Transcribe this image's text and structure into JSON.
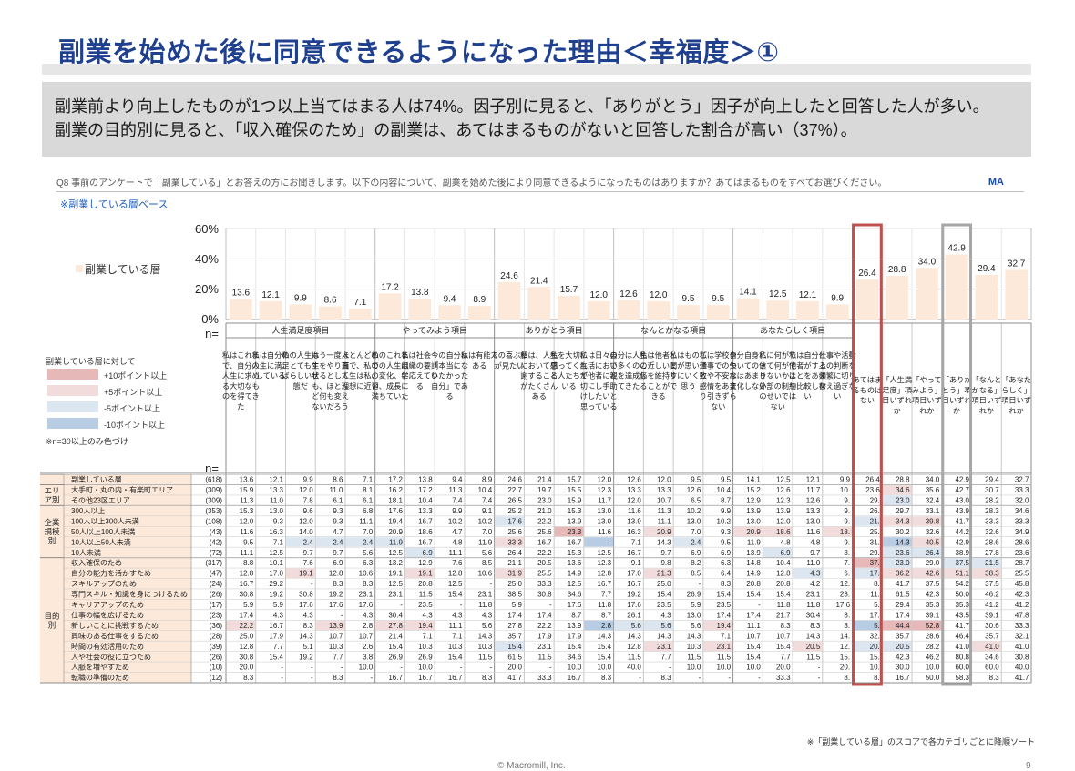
{
  "title": "副業を始めた後に同意できるようになった理由＜幸福度＞①",
  "summary": [
    "副業前より向上したものが1つ以上当てはまる人は74%。因子別に見ると、「ありがとう」因子が向上したと回答した人が多い。",
    "副業の目的別に見ると、「収入確保のため」の副業は、あてはまるものがないと回答した割合が高い（37%）。"
  ],
  "question": "Q8 事前のアンケートで「副業している」とお答えの方にお聞きします。以下の内容について、副業を始めた後により同意できるようになったものはありますか？あてはまるものをすべてお選びください。",
  "answer_type": "MA",
  "base_note": "※副業している層ベース",
  "legend_label": "副業している層",
  "color_key": {
    "title": "副業している層に対して",
    "items": [
      {
        "label": "+10ポイント以上",
        "color": "#e6b8b7"
      },
      {
        "label": "+5ポイント以上",
        "color": "#f2dcdb"
      },
      {
        "label": "-5ポイント以上",
        "color": "#dce6f1"
      },
      {
        "label": "-10ポイント以上",
        "color": "#b8cce4"
      }
    ],
    "note": "※n=30以上のみ色づけ"
  },
  "n_label": "n=",
  "footnote": "※「副業している層」のスコアで各カテゴリごとに降順ソート",
  "copyright": "© Macromill, Inc.",
  "page_number": "9",
  "colors": {
    "title": "#1f3f8f",
    "bar": "#fde9d9",
    "highlight_red": "#c0504d",
    "highlight_gray": "#a6a6a6",
    "row_label_bg": "#fde9d9"
  },
  "chart_data": {
    "type": "bar",
    "ylim": [
      0,
      60
    ],
    "yticks": [
      "60%",
      "40%",
      "20%",
      "0%"
    ],
    "series": [
      {
        "name": "副業している層",
        "values": [
          13.6,
          12.1,
          9.9,
          8.6,
          7.1,
          17.2,
          13.8,
          9.4,
          8.9,
          24.6,
          21.4,
          15.7,
          12.0,
          12.6,
          12.0,
          9.5,
          9.5,
          14.1,
          12.5,
          12.1,
          9.9,
          26.4,
          28.8,
          34.0,
          42.9,
          29.4,
          32.7
        ]
      }
    ],
    "groups": [
      {
        "label": "人生満足度項目",
        "from": 0,
        "to": 4
      },
      {
        "label": "やってみよう項目",
        "from": 5,
        "to": 8
      },
      {
        "label": "ありがとう項目",
        "from": 9,
        "to": 12
      },
      {
        "label": "なんとかなる項目",
        "from": 13,
        "to": 16
      },
      {
        "label": "あなたらしく項目",
        "from": 17,
        "to": 20
      }
    ],
    "categories": [
      "私はこれまで、自分の人生に求める大切なものを得てきた",
      "私は自分の人生に満足している",
      "私の人生は、とてもすばらしい状態だ",
      "もう一度人生をやり直せるとしても、ほとんど何も変えないだろう",
      "ほとんどの面で、私の人生は私の理想に近い",
      "私のこれまでの人生は、変化、学習、成長に満ちていた",
      "私は社会・組織の要請に応えている",
      "今の自分は「本当になりたかった自分」である",
      "私は有能である",
      "人の喜ぶ顔が見たい",
      "私は、人生において感謝することがたくさんある",
      "私を大切に思ってくれる人たちがいる",
      "私は日々の生活において他者に親切にし手助けしたいと思っている",
      "自分は人生で多くのことを達成してきた",
      "私は他者との近しい関係を維持することができる",
      "私はものごとが思い通りにいくと思う",
      "私は学校や仕事での失敗や不安な感情をあまり引きずらない",
      "自分自身についての信念はあまり変化しない",
      "私に何ができて何ができないかは外部の制約のせいではない",
      "私は自分と他者がすることをあまり比較しない",
      "仕事や活動上の判断を頻繁に切り替え過ぎない",
      "あてはまるものはない",
      "「人生満足度」項目いずれか",
      "「やってみよう」項目いずれか",
      "「ありがとう」項目いずれか",
      "「なんとかなる」項目いずれか",
      "「あなたらしく」項目いずれか"
    ],
    "highlight_columns": [
      {
        "index": 21,
        "style": "red"
      },
      {
        "index": 24,
        "style": "gray"
      }
    ],
    "table_sections": [
      {
        "label": "",
        "rows": [
          {
            "label": "副業している層",
            "n": "(618)",
            "values": [
              "13.6",
              "12.1",
              "9.9",
              "8.6",
              "7.1",
              "17.2",
              "13.8",
              "9.4",
              "8.9",
              "24.6",
              "21.4",
              "15.7",
              "12.0",
              "12.6",
              "12.0",
              "9.5",
              "9.5",
              "14.1",
              "12.5",
              "12.1",
              "9.9",
              "26.4",
              "28.8",
              "34.0",
              "42.9",
              "29.4",
              "32.7"
            ],
            "colors": {}
          }
        ]
      },
      {
        "label": "エリア別",
        "rows": [
          {
            "label": "大手町・丸の内・有楽町エリア",
            "n": "(309)",
            "values": [
              "15.9",
              "13.3",
              "12.0",
              "11.0",
              "8.1",
              "16.2",
              "17.2",
              "11.3",
              "10.4",
              "22.7",
              "19.7",
              "15.5",
              "12.3",
              "13.3",
              "13.3",
              "12.6",
              "10.4",
              "15.2",
              "12.6",
              "11.7",
              "10.",
              "23.6",
              "34.6",
              "35.6",
              "42.7",
              "30.7",
              "33.3"
            ],
            "colors": {
              "22": "p5"
            }
          },
          {
            "label": "その他23区エリア",
            "n": "(309)",
            "values": [
              "11.3",
              "11.0",
              "7.8",
              "6.1",
              "6.1",
              "18.1",
              "10.4",
              "7.4",
              "7.4",
              "26.5",
              "23.0",
              "15.9",
              "11.7",
              "12.0",
              "10.7",
              "6.5",
              "8.7",
              "12.9",
              "12.3",
              "12.6",
              "9.",
              "29.",
              "23.0",
              "32.4",
              "43.0",
              "28.2",
              "32.0"
            ],
            "colors": {
              "22": "m5"
            }
          }
        ]
      },
      {
        "label": "企業規模別",
        "rows": [
          {
            "label": "300人以上",
            "n": "(353)",
            "values": [
              "15.3",
              "13.0",
              "9.6",
              "9.3",
              "6.8",
              "17.6",
              "13.3",
              "9.9",
              "9.1",
              "25.2",
              "21.0",
              "15.3",
              "13.0",
              "11.6",
              "11.3",
              "10.2",
              "9.9",
              "13.9",
              "13.9",
              "13.3",
              "9.",
              "26.",
              "29.7",
              "33.1",
              "43.9",
              "28.3",
              "34.6"
            ],
            "colors": {}
          },
          {
            "label": "100人以上300人未満",
            "n": "(108)",
            "values": [
              "12.0",
              "9.3",
              "12.0",
              "9.3",
              "11.1",
              "19.4",
              "16.7",
              "10.2",
              "10.2",
              "17.6",
              "22.2",
              "13.9",
              "13.0",
              "13.9",
              "11.1",
              "13.0",
              "10.2",
              "13.0",
              "12.0",
              "13.0",
              "9.",
              "21.",
              "34.3",
              "39.8",
              "41.7",
              "33.3",
              "33.3"
            ],
            "colors": {
              "9": "m5",
              "21": "m5",
              "22": "p5",
              "23": "p5"
            }
          },
          {
            "label": "50人以上100人未満",
            "n": "(43)",
            "values": [
              "11.6",
              "16.3",
              "14.0",
              "4.7",
              "7.0",
              "20.9",
              "18.6",
              "4.7",
              "7.0",
              "25.6",
              "25.6",
              "23.3",
              "11.6",
              "16.3",
              "20.9",
              "7.0",
              "9.3",
              "20.9",
              "18.6",
              "11.6",
              "18.",
              "25.",
              "30.2",
              "32.6",
              "44.2",
              "32.6",
              "34.9"
            ],
            "colors": {
              "11": "p10",
              "14": "p5",
              "17": "p5",
              "18": "p5",
              "20": "p5"
            }
          },
          {
            "label": "10人以上50人未満",
            "n": "(42)",
            "values": [
              "9.5",
              "7.1",
              "2.4",
              "2.4",
              "2.4",
              "11.9",
              "16.7",
              "4.8",
              "11.9",
              "33.3",
              "16.7",
              "16.7",
              "-",
              "7.1",
              "14.3",
              "2.4",
              "9.5",
              "11.9",
              "4.8",
              "4.8",
              "9.",
              "31.",
              "14.3",
              "40.5",
              "42.9",
              "28.6",
              "28.6"
            ],
            "colors": {
              "2": "m5",
              "3": "m5",
              "4": "m5",
              "5": "m5",
              "9": "p5",
              "12": "m10",
              "15": "m5",
              "22": "m10",
              "23": "p5"
            }
          },
          {
            "label": "10人未満",
            "n": "(72)",
            "values": [
              "11.1",
              "12.5",
              "9.7",
              "9.7",
              "5.6",
              "12.5",
              "6.9",
              "11.1",
              "5.6",
              "26.4",
              "22.2",
              "15.3",
              "12.5",
              "16.7",
              "9.7",
              "6.9",
              "6.9",
              "13.9",
              "6.9",
              "9.7",
              "8.",
              "29.",
              "23.6",
              "26.4",
              "38.9",
              "27.8",
              "23.6"
            ],
            "colors": {
              "6": "m5",
              "18": "m5",
              "22": "m5",
              "23": "m5",
              "31": "m5"
            }
          }
        ]
      },
      {
        "label": "目的別",
        "rows": [
          {
            "label": "収入確保のため",
            "n": "(317)",
            "values": [
              "8.8",
              "10.1",
              "7.6",
              "6.9",
              "6.3",
              "13.2",
              "12.9",
              "7.6",
              "8.5",
              "21.1",
              "20.5",
              "13.6",
              "12.3",
              "9.1",
              "9.8",
              "8.2",
              "6.3",
              "14.8",
              "10.4",
              "11.0",
              "7.",
              "37.",
              "23.0",
              "29.0",
              "37.5",
              "21.5",
              "28.7"
            ],
            "colors": {
              "21": "p10",
              "22": "m5",
              "24": "m5",
              "25": "m5"
            }
          },
          {
            "label": "自分の能力を活かすため",
            "n": "(47)",
            "values": [
              "12.8",
              "17.0",
              "19.1",
              "12.8",
              "10.6",
              "19.1",
              "19.1",
              "12.8",
              "10.6",
              "31.9",
              "25.5",
              "14.9",
              "12.8",
              "17.0",
              "21.3",
              "8.5",
              "6.4",
              "14.9",
              "12.8",
              "4.3",
              "6.",
              "17.",
              "36.2",
              "42.6",
              "51.1",
              "38.3",
              "25.5"
            ],
            "colors": {
              "2": "p5",
              "6": "p5",
              "9": "p5",
              "14": "p5",
              "19": "m5",
              "21": "m5",
              "22": "p5",
              "23": "p5",
              "24": "p5",
              "25": "p5"
            }
          },
          {
            "label": "スキルアップのため",
            "n": "(24)",
            "values": [
              "16.7",
              "29.2",
              "-",
              "8.3",
              "8.3",
              "12.5",
              "20.8",
              "12.5",
              "-",
              "25.0",
              "33.3",
              "12.5",
              "16.7",
              "16.7",
              "25.0",
              "-",
              "8.3",
              "20.8",
              "20.8",
              "4.2",
              "12.",
              "8.",
              "41.7",
              "37.5",
              "54.2",
              "37.5",
              "45.8"
            ],
            "colors": {}
          },
          {
            "label": "専門スキル・知識を身につけるため",
            "n": "(26)",
            "values": [
              "30.8",
              "19.2",
              "30.8",
              "19.2",
              "23.1",
              "23.1",
              "11.5",
              "15.4",
              "23.1",
              "38.5",
              "30.8",
              "34.6",
              "7.7",
              "19.2",
              "15.4",
              "26.9",
              "15.4",
              "15.4",
              "15.4",
              "23.1",
              "23.",
              "11.",
              "61.5",
              "42.3",
              "50.0",
              "46.2",
              "42.3"
            ],
            "colors": {}
          },
          {
            "label": "キャリアアップのため",
            "n": "(17)",
            "values": [
              "5.9",
              "5.9",
              "17.6",
              "17.6",
              "17.6",
              "-",
              "23.5",
              "-",
              "11.8",
              "5.9",
              "-",
              "17.6",
              "11.8",
              "17.6",
              "23.5",
              "5.9",
              "23.5",
              "-",
              "11.8",
              "11.8",
              "17.6",
              "5.",
              "29.4",
              "35.3",
              "35.3",
              "41.2",
              "41.2"
            ],
            "colors": {}
          },
          {
            "label": "仕事の幅を広げるため",
            "n": "(23)",
            "values": [
              "17.4",
              "4.3",
              "4.3",
              "-",
              "4.3",
              "30.4",
              "4.3",
              "4.3",
              "4.3",
              "17.4",
              "17.4",
              "8.7",
              "8.7",
              "26.1",
              "4.3",
              "13.0",
              "17.4",
              "17.4",
              "21.7",
              "30.4",
              "8.",
              "17.",
              "17.4",
              "39.1",
              "43.5",
              "39.1",
              "47.8"
            ],
            "colors": {}
          },
          {
            "label": "新しいことに挑戦するため",
            "n": "(36)",
            "values": [
              "22.2",
              "16.7",
              "8.3",
              "13.9",
              "2.8",
              "27.8",
              "19.4",
              "11.1",
              "5.6",
              "27.8",
              "22.2",
              "13.9",
              "2.8",
              "5.6",
              "5.6",
              "5.6",
              "19.4",
              "11.1",
              "8.3",
              "8.3",
              "8.",
              "5.",
              "44.4",
              "52.8",
              "41.7",
              "30.6",
              "33.3"
            ],
            "colors": {
              "0": "p5",
              "3": "p5",
              "5": "p5",
              "6": "p5",
              "12": "m10",
              "13": "m5",
              "14": "m5",
              "16": "p5",
              "21": "m10",
              "22": "p10",
              "23": "p10"
            }
          },
          {
            "label": "興味のある仕事をするため",
            "n": "(28)",
            "values": [
              "25.0",
              "17.9",
              "14.3",
              "10.7",
              "10.7",
              "21.4",
              "7.1",
              "7.1",
              "14.3",
              "35.7",
              "17.9",
              "17.9",
              "14.3",
              "14.3",
              "14.3",
              "14.3",
              "7.1",
              "10.7",
              "10.7",
              "14.3",
              "14.",
              "32.",
              "35.7",
              "28.6",
              "46.4",
              "35.7",
              "32.1"
            ],
            "colors": {}
          },
          {
            "label": "時間の有効活用のため",
            "n": "(39)",
            "values": [
              "12.8",
              "7.7",
              "5.1",
              "10.3",
              "2.6",
              "15.4",
              "10.3",
              "10.3",
              "10.3",
              "15.4",
              "23.1",
              "15.4",
              "15.4",
              "12.8",
              "23.1",
              "10.3",
              "23.1",
              "15.4",
              "15.4",
              "20.5",
              "12.",
              "20.",
              "20.5",
              "28.2",
              "41.0",
              "41.0",
              "41.0"
            ],
            "colors": {
              "9": "m5",
              "14": "p5",
              "16": "p5",
              "19": "p5",
              "21": "m5",
              "22": "m5",
              "25": "p5"
            }
          },
          {
            "label": "人や社会の役に立つため",
            "n": "(26)",
            "values": [
              "30.8",
              "15.4",
              "19.2",
              "7.7",
              "3.8",
              "26.9",
              "26.9",
              "15.4",
              "11.5",
              "61.5",
              "11.5",
              "34.6",
              "15.4",
              "11.5",
              "7.7",
              "11.5",
              "11.5",
              "15.4",
              "7.7",
              "11.5",
              "15.",
              "15.",
              "42.3",
              "46.2",
              "80.8",
              "34.6",
              "30.8"
            ],
            "colors": {}
          },
          {
            "label": "人脈を増やすため",
            "n": "(10)",
            "values": [
              "20.0",
              "-",
              "-",
              "-",
              "10.0",
              "-",
              "10.0",
              "-",
              "-",
              "20.0",
              "-",
              "10.0",
              "10.0",
              "40.0",
              "-",
              "10.0",
              "10.0",
              "10.0",
              "20.0",
              "-",
              "20.",
              "10.",
              "30.0",
              "10.0",
              "60.0",
              "60.0",
              "40.0"
            ],
            "colors": {}
          },
          {
            "label": "転職の準備のため",
            "n": "(12)",
            "values": [
              "8.3",
              "-",
              "-",
              "8.3",
              "-",
              "16.7",
              "16.7",
              "16.7",
              "8.3",
              "41.7",
              "33.3",
              "16.7",
              "8.3",
              "-",
              "8.3",
              "-",
              "-",
              "-",
              "33.3",
              "-",
              "8.",
              "8.",
              "16.7",
              "50.0",
              "58.3",
              "8.3",
              "41.7"
            ],
            "colors": {}
          }
        ]
      }
    ]
  }
}
